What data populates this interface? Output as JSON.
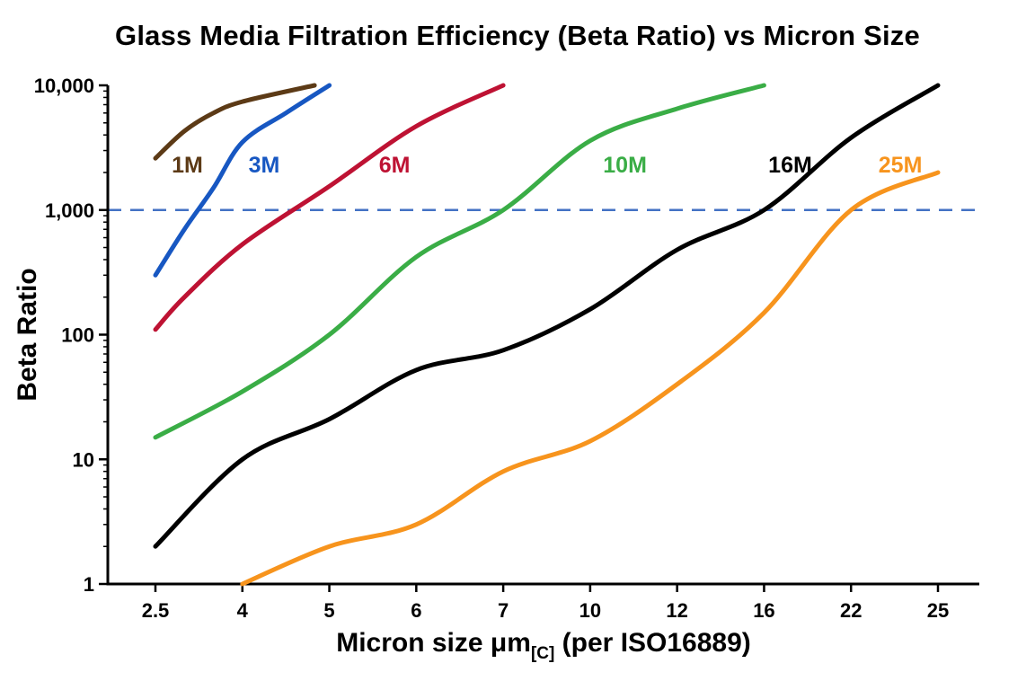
{
  "chart_data": {
    "type": "line",
    "title": "Glass Media Filtration Efficiency (Beta Ratio) vs Micron Size",
    "ylabel": "Beta Ratio",
    "xlabel_parts": {
      "main": "Micron size μm",
      "subscript": "[C]",
      "tail": " (per ISO16889)"
    },
    "x_scale": "categorical-equal-spacing",
    "y_scale": "log",
    "grid": false,
    "legend": "inline-curve-labels",
    "x_categories": [
      2.5,
      4,
      5,
      6,
      7,
      10,
      12,
      16,
      22,
      25
    ],
    "x_tick_labels": [
      "2.5",
      "4",
      "5",
      "6",
      "7",
      "10",
      "12",
      "16",
      "22",
      "25"
    ],
    "y_ticks": [
      1,
      10,
      100,
      1000,
      10000
    ],
    "y_tick_labels": [
      "1",
      "10",
      "100",
      "1,000",
      "10,000"
    ],
    "ylim": [
      1,
      10000
    ],
    "reference_line": {
      "value": 1000,
      "color": "#4472C4",
      "style": "dashed"
    },
    "series": [
      {
        "name": "1M",
        "color": "#5C3A16",
        "label": {
          "text": "1M",
          "x": 3.05,
          "y": 2000
        },
        "points": [
          [
            2.5,
            2600
          ],
          [
            3.0,
            4300
          ],
          [
            3.5,
            6000
          ],
          [
            4.0,
            7400
          ],
          [
            4.83,
            10000
          ]
        ]
      },
      {
        "name": "3M",
        "color": "#1757C2",
        "label": {
          "text": "3M",
          "x": 4.25,
          "y": 2000
        },
        "points": [
          [
            2.5,
            300
          ],
          [
            3.0,
            700
          ],
          [
            3.5,
            1500
          ],
          [
            4.0,
            3500
          ],
          [
            4.5,
            6000
          ],
          [
            5.0,
            10000
          ]
        ]
      },
      {
        "name": "6M",
        "color": "#BE1233",
        "label": {
          "text": "6M",
          "x": 5.75,
          "y": 2000
        },
        "points": [
          [
            2.5,
            110
          ],
          [
            3.0,
            200
          ],
          [
            4.0,
            530
          ],
          [
            5.0,
            1550
          ],
          [
            6.0,
            4700
          ],
          [
            7.0,
            10000
          ]
        ]
      },
      {
        "name": "10M",
        "color": "#3AAD46",
        "label": {
          "text": "10M",
          "x": 10.8,
          "y": 2000
        },
        "points": [
          [
            2.5,
            15
          ],
          [
            4.0,
            35
          ],
          [
            5.0,
            100
          ],
          [
            6.0,
            420
          ],
          [
            7.0,
            1000
          ],
          [
            10,
            3600
          ],
          [
            12,
            6500
          ],
          [
            16,
            10000
          ]
        ]
      },
      {
        "name": "16M",
        "color": "#000000",
        "label": {
          "text": "16M",
          "x": 17.8,
          "y": 2000
        },
        "points": [
          [
            2.5,
            2
          ],
          [
            4.0,
            10
          ],
          [
            5.0,
            21
          ],
          [
            6.0,
            52
          ],
          [
            7.0,
            75
          ],
          [
            10,
            160
          ],
          [
            12,
            480
          ],
          [
            16,
            1000
          ],
          [
            22,
            3800
          ],
          [
            25,
            10000
          ]
        ]
      },
      {
        "name": "25M",
        "color": "#F7941D",
        "label": {
          "text": "25M",
          "x": 23.7,
          "y": 2000
        },
        "points": [
          [
            4.0,
            1
          ],
          [
            5.0,
            2
          ],
          [
            6.0,
            3
          ],
          [
            7.0,
            8
          ],
          [
            10,
            14
          ],
          [
            12,
            40
          ],
          [
            16,
            150
          ],
          [
            22,
            1000
          ],
          [
            25,
            2000
          ]
        ]
      }
    ]
  }
}
